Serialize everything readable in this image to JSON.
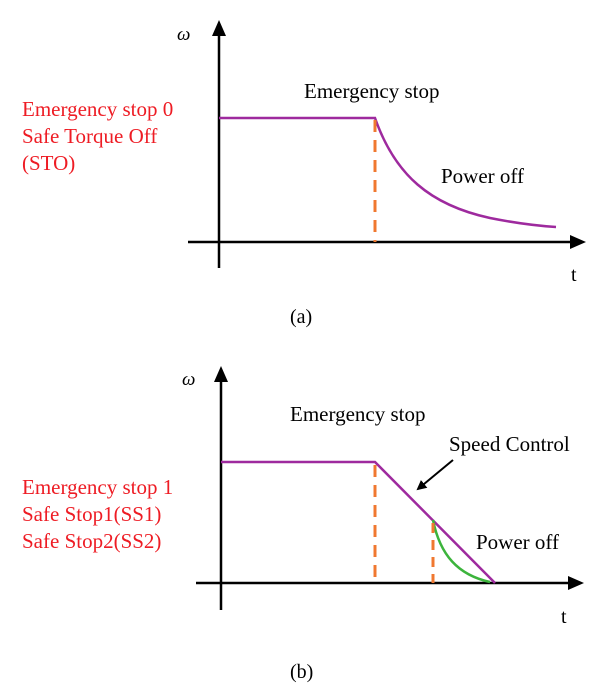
{
  "colors": {
    "axis": "#000000",
    "speed_curve": "#9e2a9e",
    "stop_marker": "#f07830",
    "safe_stop_curve": "#3cb43c",
    "mode_label": "#ee1c24",
    "text": "#000000"
  },
  "panel_a": {
    "y_axis_label": "ω",
    "x_axis_label": "t",
    "mode_lines": [
      "Emergency stop 0",
      "Safe Torque Off",
      "(STO)"
    ],
    "event_label": "Emergency stop",
    "power_label": "Power off",
    "caption": "(a)"
  },
  "panel_b": {
    "y_axis_label": "ω",
    "x_axis_label": "t",
    "mode_lines": [
      "Emergency stop 1",
      "Safe Stop1(SS1)",
      "Safe Stop2(SS2)"
    ],
    "event_label": "Emergency stop",
    "control_label": "Speed Control",
    "power_label": "Power off",
    "caption": "(b)"
  }
}
